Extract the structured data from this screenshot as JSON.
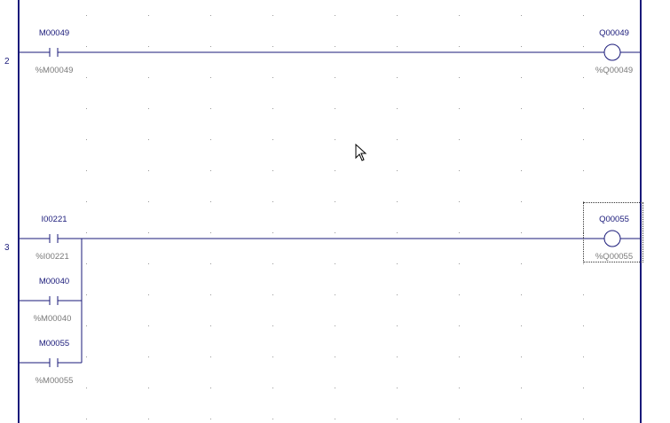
{
  "rungs": [
    {
      "number": "2",
      "contacts": [
        {
          "name": "M00049",
          "address": "%M00049"
        }
      ],
      "coil": {
        "name": "Q00049",
        "address": "%Q00049"
      }
    },
    {
      "number": "3",
      "contacts": [
        {
          "name": "I00221",
          "address": "%I00221"
        },
        {
          "name": "M00040",
          "address": "%M00040"
        },
        {
          "name": "M00055",
          "address": "%M00055"
        }
      ],
      "coil": {
        "name": "Q00055",
        "address": "%Q00055"
      }
    }
  ],
  "colors": {
    "wire": "#1a1a7a",
    "grid_dot": "#9a9a9a",
    "background": "#ffffff"
  },
  "icons": {
    "cursor": "mouse-pointer-icon"
  }
}
